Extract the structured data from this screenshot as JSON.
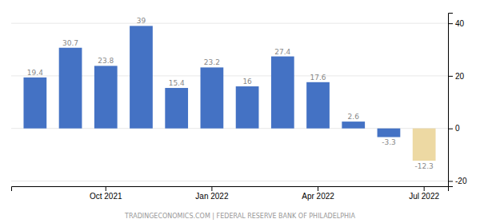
{
  "chart_data": {
    "type": "bar",
    "categories": [
      null,
      null,
      "Oct 2021",
      null,
      null,
      "Jan 2022",
      null,
      null,
      "Apr 2022",
      null,
      null,
      "Jul 2022"
    ],
    "values": [
      19.4,
      30.7,
      23.8,
      39,
      15.4,
      23.2,
      16,
      27.4,
      17.6,
      2.6,
      -3.3,
      -12.3
    ],
    "colors": [
      "#4472C4",
      "#4472C4",
      "#4472C4",
      "#4472C4",
      "#4472C4",
      "#4472C4",
      "#4472C4",
      "#4472C4",
      "#4472C4",
      "#4472C4",
      "#4472C4",
      "#EDD9A3"
    ],
    "ylim": [
      -22,
      44
    ],
    "yticks": [
      -20,
      0,
      20,
      40
    ],
    "grid": true,
    "data_labels": true,
    "annotations": [
      "TRADINGECONOMICS.COM | FEDERAL RESERVE BANK OF PHILADELPHIA"
    ]
  }
}
